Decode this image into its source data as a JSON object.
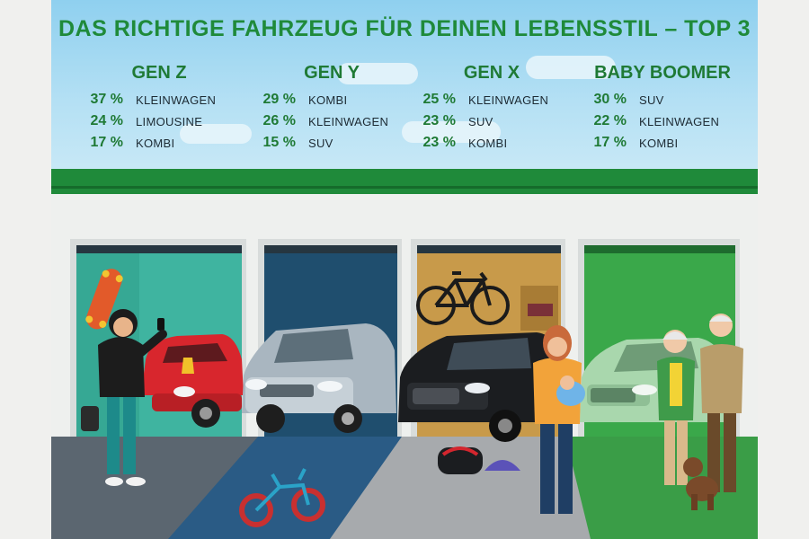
{
  "title": "DAS RICHTIGE FAHRZEUG FÜR DEINEN LEBENSSTIL – TOP 3",
  "colors": {
    "title_green": "#1f8a3a",
    "band_green": "#1f8a3a",
    "sky": "#a9dcf2"
  },
  "generations": [
    {
      "name": "GEN Z",
      "rows": [
        {
          "pct": "37 %",
          "vehicle": "KLEINWAGEN"
        },
        {
          "pct": "24 %",
          "vehicle": "LIMOUSINE"
        },
        {
          "pct": "17 %",
          "vehicle": "KOMBI"
        }
      ]
    },
    {
      "name": "GEN Y",
      "rows": [
        {
          "pct": "29 %",
          "vehicle": "KOMBI"
        },
        {
          "pct": "26 %",
          "vehicle": "KLEINWAGEN"
        },
        {
          "pct": "15 %",
          "vehicle": "SUV"
        }
      ]
    },
    {
      "name": "GEN X",
      "rows": [
        {
          "pct": "25 %",
          "vehicle": "KLEINWAGEN"
        },
        {
          "pct": "23 %",
          "vehicle": "SUV"
        },
        {
          "pct": "23 %",
          "vehicle": "KOMBI"
        }
      ]
    },
    {
      "name": "BABY BOOMER",
      "rows": [
        {
          "pct": "30 %",
          "vehicle": "SUV"
        },
        {
          "pct": "22 %",
          "vehicle": "KLEINWAGEN"
        },
        {
          "pct": "17 %",
          "vehicle": "KOMBI"
        }
      ]
    }
  ],
  "illustration": {
    "garage_door_colors": [
      "#3fb4a0",
      "#1f4e6e",
      "#c89a4a",
      "#3aa84a"
    ],
    "car_colors": [
      "#d8262d",
      "#a9b6c0",
      "#1b1d20",
      "#a9d7ad"
    ],
    "icons": [
      "skateboard-icon",
      "bicycle-icon",
      "kids-balance-bike-icon",
      "helmet-icon",
      "sports-bag-icon",
      "dog-icon",
      "smartphone-icon",
      "speaker-icon",
      "toolbox-icon"
    ]
  }
}
